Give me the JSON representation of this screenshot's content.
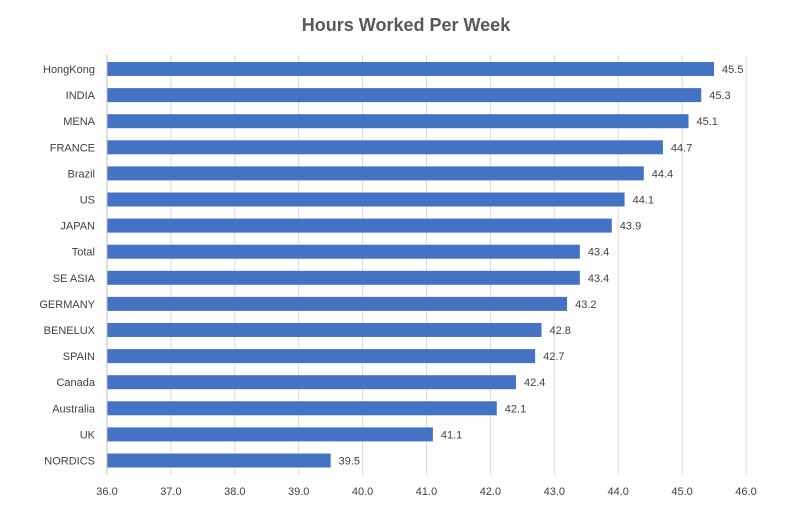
{
  "chart_data": {
    "type": "bar",
    "orientation": "horizontal",
    "title": "Hours Worked Per Week",
    "xlabel": "",
    "ylabel": "",
    "categories": [
      "HongKong",
      "INDIA",
      "MENA",
      "FRANCE",
      "Brazil",
      "US",
      "JAPAN",
      "Total",
      "SE ASIA",
      "GERMANY",
      "BENELUX",
      "SPAIN",
      "Canada",
      "Australia",
      "UK",
      "NORDICS"
    ],
    "values": [
      45.5,
      45.3,
      45.1,
      44.7,
      44.4,
      44.1,
      43.9,
      43.4,
      43.4,
      43.2,
      42.8,
      42.7,
      42.4,
      42.1,
      41.1,
      39.5
    ],
    "value_labels": [
      "45.5",
      "45.3",
      "45.1",
      "44.7",
      "44.4",
      "44.1",
      "43.9",
      "43.4",
      "43.4",
      "43.2",
      "42.8",
      "42.7",
      "42.4",
      "42.1",
      "41.1",
      "39.5"
    ],
    "xlim": [
      36.0,
      46.0
    ],
    "x_ticks": [
      36.0,
      37.0,
      38.0,
      39.0,
      40.0,
      41.0,
      42.0,
      43.0,
      44.0,
      45.0,
      46.0
    ],
    "x_tick_labels": [
      "36.0",
      "37.0",
      "38.0",
      "39.0",
      "40.0",
      "41.0",
      "42.0",
      "43.0",
      "44.0",
      "45.0",
      "46.0"
    ],
    "grid": "vertical",
    "legend": "none",
    "bar_color": "#4472C4",
    "grid_color": "#D9D9D9",
    "text_color": "#404040",
    "title_color": "#595959"
  }
}
